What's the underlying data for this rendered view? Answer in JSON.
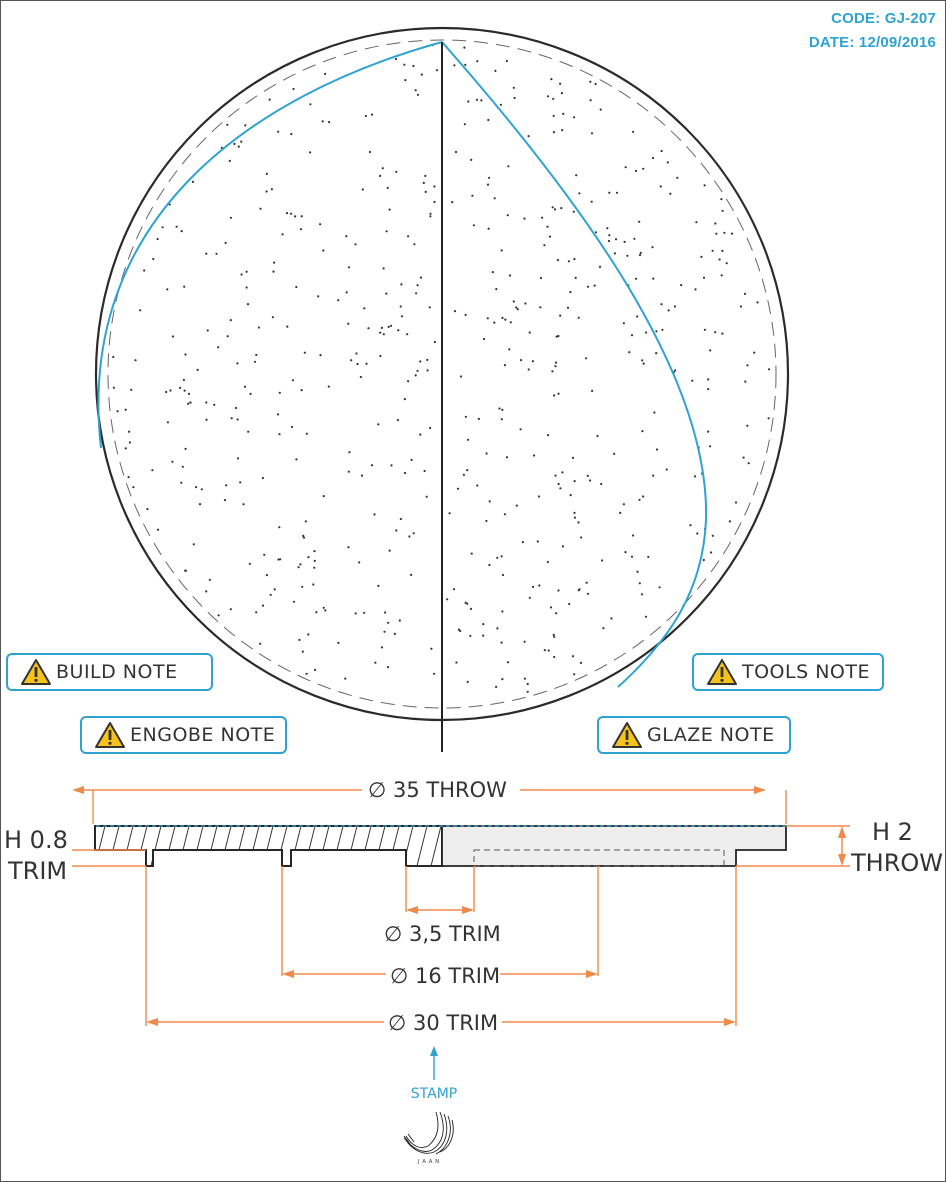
{
  "header": {
    "code": "CODE: GJ-207",
    "date": "DATE: 12/09/2016"
  },
  "notes": {
    "build": "BUILD NOTE",
    "tools": "TOOLS NOTE",
    "engobe": "ENGOBE NOTE",
    "glaze": "GLAZE NOTE"
  },
  "dimensions": {
    "diameter_throw": "∅ 35  THROW",
    "diameter_foot_ring": "∅ 3,5  TRIM",
    "diameter_16": "∅ 16  TRIM",
    "diameter_30": "∅ 30  TRIM",
    "height_trim_value": "H 0.8",
    "height_trim_label": "TRIM",
    "height_throw_value": "H 2",
    "height_throw_label": "THROW"
  },
  "stamp": {
    "label": "STAMP",
    "maker": "JAAN"
  },
  "colors": {
    "accent": "#2ea3d1",
    "dimension": "#f08a4b",
    "ink": "#222222",
    "section_fill": "#eeeeee"
  },
  "icons": {
    "note_icon": "warning-triangle-icon",
    "stamp_icon": "signature-mark-icon"
  }
}
